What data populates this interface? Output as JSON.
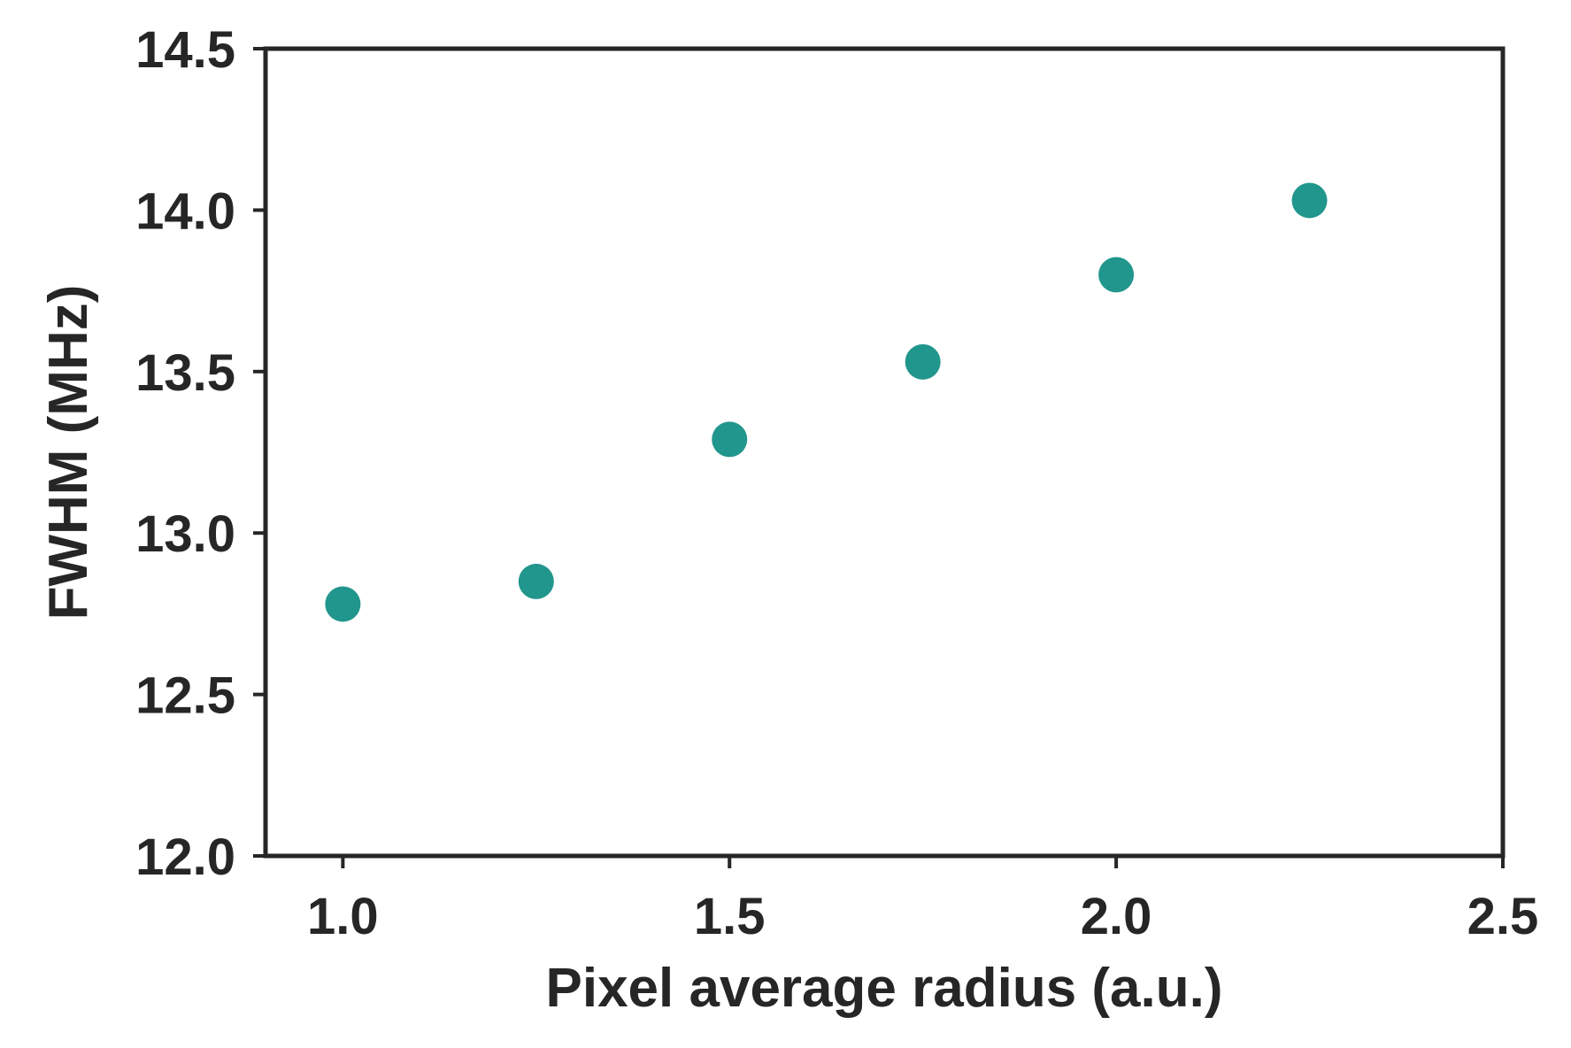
{
  "chart_data": {
    "type": "scatter",
    "title": "",
    "xlabel": "Pixel average radius (a.u.)",
    "ylabel": "FWHM (MHz)",
    "xlim": [
      0.9,
      2.5
    ],
    "ylim": [
      12.0,
      14.5
    ],
    "xticks": [
      1.0,
      1.5,
      2.0,
      2.5
    ],
    "yticks": [
      12.0,
      12.5,
      13.0,
      13.5,
      14.0,
      14.5
    ],
    "xtick_labels": [
      "1.0",
      "1.5",
      "2.0",
      "2.5"
    ],
    "ytick_labels": [
      "12.0",
      "12.5",
      "13.0",
      "13.5",
      "14.0",
      "14.5"
    ],
    "grid": false,
    "legend": false,
    "marker_color": "#21968D",
    "axis_color": "#262626",
    "series": [
      {
        "x": [
          1.0,
          1.25,
          1.5,
          1.75,
          2.0,
          2.25
        ],
        "y": [
          12.78,
          12.85,
          13.29,
          13.53,
          13.8,
          14.03
        ]
      }
    ]
  }
}
